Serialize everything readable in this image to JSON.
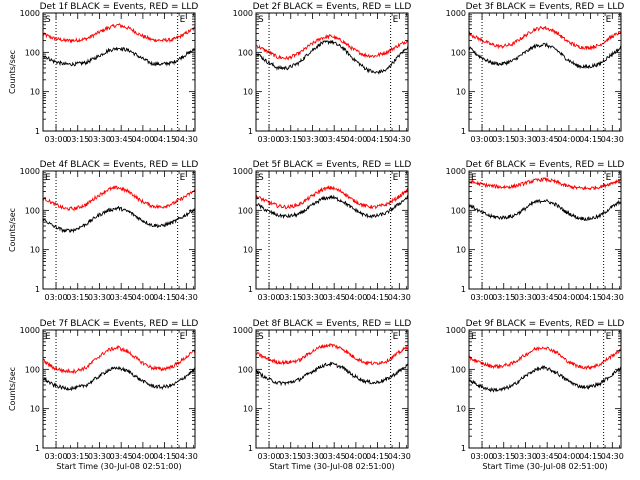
{
  "chart_data": [
    {
      "type": "line",
      "title": "Det 1f BLACK = Events, RED = LLD",
      "marker": "S",
      "ylabel": "Counts/sec",
      "xlabel": "",
      "yscale": "log",
      "ylim": [
        1,
        1000
      ],
      "yticks": [
        "1",
        "10",
        "100",
        "1000"
      ],
      "xticks": [
        "03:00",
        "03:15",
        "03:30",
        "03:45",
        "04:00",
        "04:15",
        "04:30"
      ],
      "xlim_min": [
        0,
        105
      ],
      "vlines_min": [
        9,
        93
      ],
      "series": [
        {
          "color": "#ff0000",
          "x_min": [
            0,
            7,
            15,
            22,
            30,
            37,
            45,
            52,
            60,
            67,
            75,
            82,
            90,
            97,
            105
          ],
          "values": [
            290,
            230,
            200,
            200,
            220,
            300,
            420,
            500,
            400,
            280,
            210,
            200,
            210,
            280,
            420
          ]
        },
        {
          "color": "#000000",
          "x_min": [
            0,
            7,
            15,
            22,
            30,
            37,
            45,
            52,
            60,
            67,
            75,
            82,
            90,
            97,
            105
          ],
          "values": [
            85,
            60,
            50,
            50,
            55,
            75,
            110,
            130,
            110,
            75,
            52,
            50,
            55,
            80,
            120
          ]
        }
      ]
    },
    {
      "type": "line",
      "title": "Det 2f BLACK = Events, RED = LLD",
      "marker": "S",
      "ylabel": "",
      "xlabel": "",
      "yscale": "log",
      "ylim": [
        1,
        1000
      ],
      "yticks": [
        "1",
        "10",
        "100",
        "1000"
      ],
      "xticks": [
        "03:00",
        "03:15",
        "03:30",
        "03:45",
        "04:00",
        "04:15",
        "04:30"
      ],
      "xlim_min": [
        0,
        105
      ],
      "vlines_min": [
        9,
        93
      ],
      "series": [
        {
          "color": "#ff0000",
          "x_min": [
            0,
            7,
            15,
            22,
            30,
            37,
            45,
            52,
            60,
            67,
            75,
            82,
            90,
            97,
            105
          ],
          "values": [
            150,
            110,
            75,
            70,
            95,
            150,
            230,
            260,
            190,
            120,
            85,
            80,
            100,
            140,
            200
          ]
        },
        {
          "color": "#000000",
          "x_min": [
            0,
            7,
            15,
            22,
            30,
            37,
            45,
            52,
            60,
            67,
            75,
            82,
            90,
            97,
            105
          ],
          "values": [
            100,
            60,
            40,
            40,
            55,
            100,
            170,
            190,
            130,
            70,
            40,
            30,
            35,
            70,
            140
          ]
        }
      ]
    },
    {
      "type": "line",
      "title": "Det 3f BLACK = Events, RED = LLD",
      "marker": "",
      "ylabel": "",
      "xlabel": "",
      "yscale": "log",
      "ylim": [
        1,
        1000
      ],
      "yticks": [
        "1",
        "10",
        "100",
        "1000"
      ],
      "xticks": [
        "03:00",
        "03:15",
        "03:30",
        "03:45",
        "04:00",
        "04:15",
        "04:30"
      ],
      "xlim_min": [
        0,
        105
      ],
      "vlines_min": [
        9,
        93
      ],
      "series": [
        {
          "color": "#ff0000",
          "x_min": [
            0,
            7,
            15,
            22,
            30,
            37,
            45,
            52,
            60,
            67,
            75,
            82,
            90,
            97,
            105
          ],
          "values": [
            300,
            220,
            160,
            140,
            160,
            240,
            380,
            430,
            330,
            200,
            140,
            130,
            150,
            230,
            330
          ]
        },
        {
          "color": "#000000",
          "x_min": [
            0,
            7,
            15,
            22,
            30,
            37,
            45,
            52,
            60,
            67,
            75,
            82,
            90,
            97,
            105
          ],
          "values": [
            130,
            80,
            55,
            50,
            60,
            90,
            140,
            160,
            120,
            70,
            45,
            42,
            50,
            80,
            130
          ]
        }
      ]
    },
    {
      "type": "line",
      "title": "Det 4f BLACK = Events, RED = LLD",
      "marker": "E",
      "ylabel": "Counts/sec",
      "xlabel": "",
      "yscale": "log",
      "ylim": [
        1,
        1000
      ],
      "yticks": [
        "1",
        "10",
        "100",
        "1000"
      ],
      "xticks": [
        "03:00",
        "03:15",
        "03:30",
        "03:45",
        "04:00",
        "04:15",
        "04:30"
      ],
      "xlim_min": [
        0,
        105
      ],
      "vlines_min": [
        9,
        93
      ],
      "series": [
        {
          "color": "#ff0000",
          "x_min": [
            0,
            7,
            15,
            22,
            30,
            37,
            45,
            52,
            60,
            67,
            75,
            82,
            90,
            97,
            105
          ],
          "values": [
            210,
            150,
            110,
            110,
            140,
            220,
            340,
            380,
            290,
            180,
            130,
            120,
            150,
            210,
            320
          ]
        },
        {
          "color": "#000000",
          "x_min": [
            0,
            7,
            15,
            22,
            30,
            37,
            45,
            52,
            60,
            67,
            75,
            82,
            90,
            97,
            105
          ],
          "values": [
            60,
            40,
            30,
            32,
            45,
            70,
            100,
            115,
            90,
            60,
            42,
            40,
            50,
            70,
            110
          ]
        }
      ]
    },
    {
      "type": "line",
      "title": "Det 5f BLACK = Events, RED = LLD",
      "marker": "S",
      "ylabel": "",
      "xlabel": "",
      "yscale": "log",
      "ylim": [
        1,
        1000
      ],
      "yticks": [
        "1",
        "10",
        "100",
        "1000"
      ],
      "xticks": [
        "03:00",
        "03:15",
        "03:30",
        "03:45",
        "04:00",
        "04:15",
        "04:30"
      ],
      "xlim_min": [
        0,
        105
      ],
      "vlines_min": [
        9,
        93
      ],
      "series": [
        {
          "color": "#ff0000",
          "x_min": [
            0,
            7,
            15,
            22,
            30,
            37,
            45,
            52,
            60,
            67,
            75,
            82,
            90,
            97,
            105
          ],
          "values": [
            230,
            170,
            130,
            120,
            140,
            210,
            330,
            380,
            290,
            180,
            130,
            120,
            140,
            200,
            330
          ]
        },
        {
          "color": "#000000",
          "x_min": [
            0,
            7,
            15,
            22,
            30,
            37,
            45,
            52,
            60,
            67,
            75,
            82,
            90,
            97,
            105
          ],
          "values": [
            150,
            100,
            75,
            70,
            80,
            120,
            190,
            220,
            170,
            110,
            75,
            70,
            85,
            130,
            220
          ]
        }
      ]
    },
    {
      "type": "line",
      "title": "Det 6f BLACK = Events, RED = LLD",
      "marker": "E",
      "ylabel": "",
      "xlabel": "",
      "yscale": "log",
      "ylim": [
        1,
        1000
      ],
      "yticks": [
        "1",
        "10",
        "100",
        "1000"
      ],
      "xticks": [
        "03:00",
        "03:15",
        "03:30",
        "03:45",
        "04:00",
        "04:15",
        "04:30"
      ],
      "xlim_min": [
        0,
        105
      ],
      "vlines_min": [
        9,
        93
      ],
      "series": [
        {
          "color": "#ff0000",
          "x_min": [
            0,
            7,
            15,
            22,
            30,
            37,
            45,
            52,
            60,
            67,
            75,
            82,
            90,
            97,
            105
          ],
          "values": [
            550,
            470,
            420,
            390,
            400,
            470,
            570,
            620,
            530,
            420,
            370,
            360,
            390,
            470,
            600
          ]
        },
        {
          "color": "#000000",
          "x_min": [
            0,
            7,
            15,
            22,
            30,
            37,
            45,
            52,
            60,
            67,
            75,
            82,
            90,
            97,
            105
          ],
          "values": [
            140,
            95,
            70,
            65,
            70,
            100,
            160,
            180,
            140,
            90,
            65,
            60,
            70,
            110,
            170
          ]
        }
      ]
    },
    {
      "type": "line",
      "title": "Det 7f BLACK = Events, RED = LLD",
      "marker": "E",
      "ylabel": "Counts/sec",
      "xlabel": "Start Time (30-Jul-08 02:51:00)",
      "yscale": "log",
      "ylim": [
        1,
        1000
      ],
      "yticks": [
        "1",
        "10",
        "100",
        "1000"
      ],
      "xticks": [
        "03:00",
        "03:15",
        "03:30",
        "03:45",
        "04:00",
        "04:15",
        "04:30"
      ],
      "xlim_min": [
        0,
        105
      ],
      "vlines_min": [
        9,
        93
      ],
      "series": [
        {
          "color": "#ff0000",
          "x_min": [
            0,
            7,
            15,
            22,
            30,
            37,
            45,
            52,
            60,
            67,
            75,
            82,
            90,
            97,
            105
          ],
          "values": [
            170,
            110,
            90,
            90,
            110,
            190,
            310,
            360,
            260,
            160,
            110,
            100,
            120,
            180,
            300
          ]
        },
        {
          "color": "#000000",
          "x_min": [
            0,
            7,
            15,
            22,
            30,
            37,
            45,
            52,
            60,
            67,
            75,
            82,
            90,
            97,
            105
          ],
          "values": [
            60,
            40,
            33,
            33,
            40,
            60,
            95,
            110,
            85,
            55,
            38,
            35,
            40,
            60,
            100
          ]
        }
      ]
    },
    {
      "type": "line",
      "title": "Det 8f BLACK = Events, RED = LLD",
      "marker": "S",
      "ylabel": "",
      "xlabel": "Start Time (30-Jul-08 02:51:00)",
      "yscale": "log",
      "ylim": [
        1,
        1000
      ],
      "yticks": [
        "1",
        "10",
        "100",
        "1000"
      ],
      "xticks": [
        "03:00",
        "03:15",
        "03:30",
        "03:45",
        "04:00",
        "04:15",
        "04:30"
      ],
      "xlim_min": [
        0,
        105
      ],
      "vlines_min": [
        9,
        93
      ],
      "series": [
        {
          "color": "#ff0000",
          "x_min": [
            0,
            7,
            15,
            22,
            30,
            37,
            45,
            52,
            60,
            67,
            75,
            82,
            90,
            97,
            105
          ],
          "values": [
            260,
            190,
            150,
            150,
            170,
            260,
            380,
            420,
            330,
            210,
            150,
            140,
            160,
            240,
            380
          ]
        },
        {
          "color": "#000000",
          "x_min": [
            0,
            7,
            15,
            22,
            30,
            37,
            45,
            52,
            60,
            67,
            75,
            82,
            90,
            97,
            105
          ],
          "values": [
            90,
            60,
            45,
            45,
            55,
            80,
            120,
            140,
            110,
            70,
            50,
            45,
            55,
            80,
            130
          ]
        }
      ]
    },
    {
      "type": "line",
      "title": "Det 9f BLACK = Events, RED = LLD",
      "marker": "E",
      "ylabel": "",
      "xlabel": "Start Time (30-Jul-08 02:51:00)",
      "yscale": "log",
      "ylim": [
        1,
        1000
      ],
      "yticks": [
        "1",
        "10",
        "100",
        "1000"
      ],
      "xticks": [
        "03:00",
        "03:15",
        "03:30",
        "03:45",
        "04:00",
        "04:15",
        "04:30"
      ],
      "xlim_min": [
        0,
        105
      ],
      "vlines_min": [
        9,
        93
      ],
      "series": [
        {
          "color": "#ff0000",
          "x_min": [
            0,
            7,
            15,
            22,
            30,
            37,
            45,
            52,
            60,
            67,
            75,
            82,
            90,
            97,
            105
          ],
          "values": [
            200,
            150,
            120,
            120,
            140,
            210,
            320,
            370,
            280,
            170,
            120,
            110,
            130,
            200,
            320
          ]
        },
        {
          "color": "#000000",
          "x_min": [
            0,
            7,
            15,
            22,
            30,
            37,
            45,
            52,
            60,
            67,
            75,
            82,
            90,
            97,
            105
          ],
          "values": [
            55,
            38,
            30,
            30,
            38,
            60,
            95,
            110,
            85,
            55,
            38,
            35,
            42,
            65,
            110
          ]
        }
      ]
    }
  ]
}
